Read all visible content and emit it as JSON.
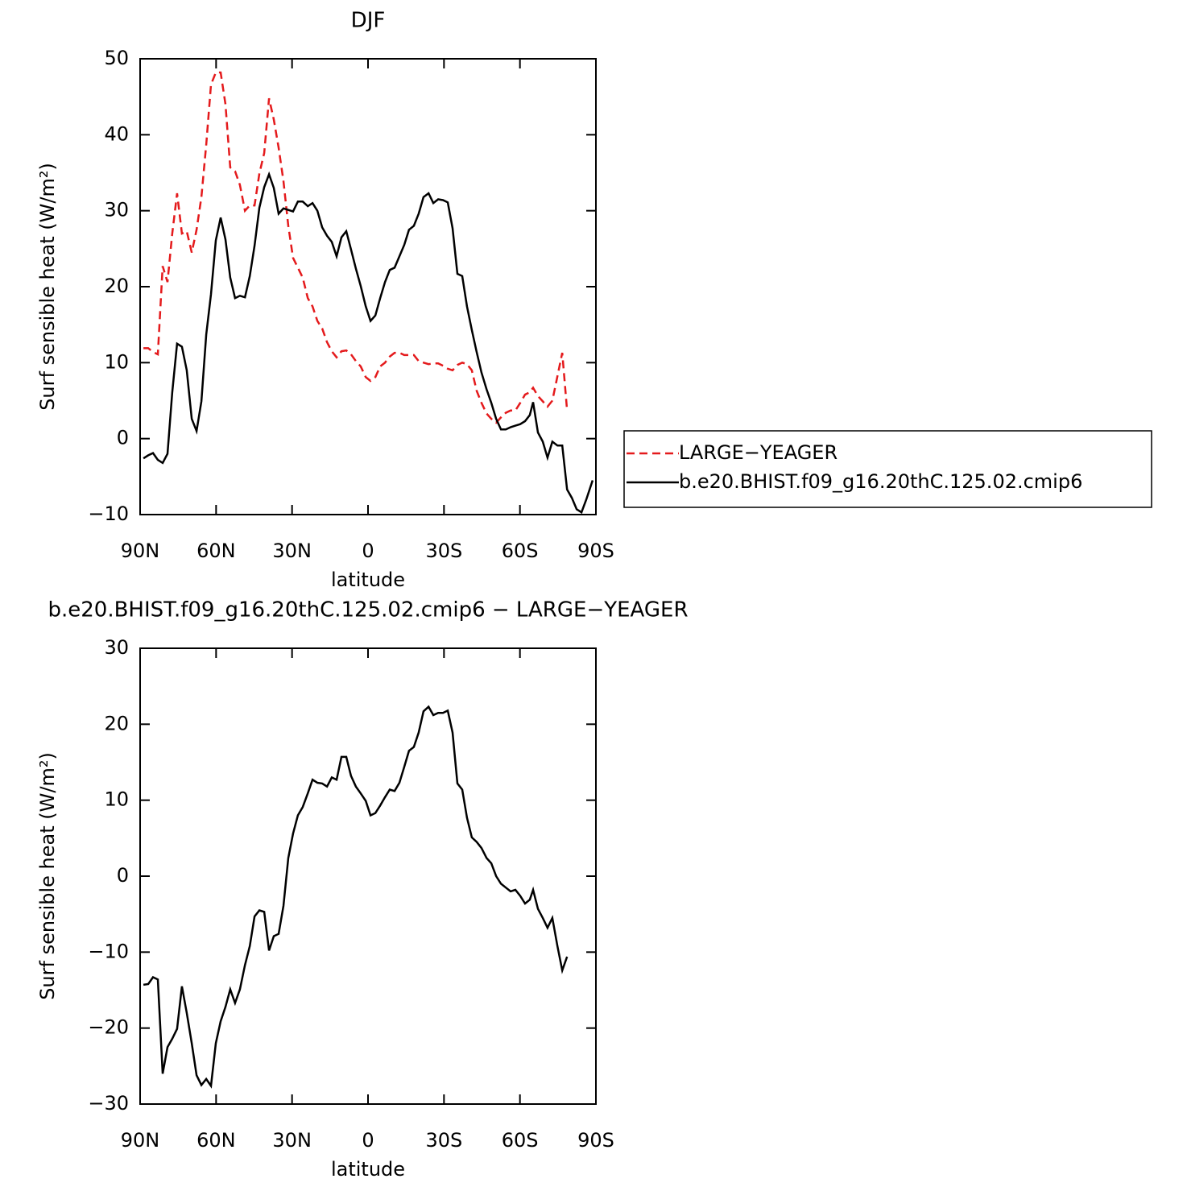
{
  "chart_data": [
    {
      "type": "line",
      "title": "DJF",
      "xlabel": "latitude",
      "ylabel": "Surf sensible heat (W/m²)",
      "xlim": [
        90,
        -90
      ],
      "xticks": [
        {
          "value": 90,
          "label": "90N"
        },
        {
          "value": 60,
          "label": "60N"
        },
        {
          "value": 30,
          "label": "30N"
        },
        0,
        {
          "value": -30,
          "label": "30S"
        },
        {
          "value": -60,
          "label": "60S"
        },
        {
          "value": -90,
          "label": "90S"
        }
      ],
      "ylim": [
        -10,
        50
      ],
      "yticks": [
        {
          "value": -10,
          "label": "−10"
        },
        0,
        10,
        20,
        30,
        40,
        50
      ],
      "legend": "right",
      "x": [
        88.7,
        86.8,
        84.9,
        83,
        81.1,
        79.2,
        77.3,
        75.4,
        73.5,
        71.6,
        69.6,
        67.7,
        65.8,
        63.9,
        62,
        60.1,
        58.2,
        56.3,
        54.4,
        52.5,
        50.6,
        48.6,
        46.7,
        44.8,
        42.9,
        41,
        39.1,
        37.2,
        35.3,
        33.4,
        31.5,
        29.6,
        27.7,
        25.8,
        23.8,
        21.9,
        20,
        18.1,
        16.2,
        14.3,
        12.4,
        10.5,
        8.6,
        6.7,
        4.8,
        2.9,
        0.9,
        -1,
        -2.9,
        -4.8,
        -6.7,
        -8.6,
        -10.5,
        -12.4,
        -14.3,
        -16.2,
        -18.1,
        -20,
        -21.9,
        -23.9,
        -25.8,
        -27.7,
        -29.6,
        -31.5,
        -33.4,
        -35.3,
        -37.2,
        -39.1,
        -41,
        -42.9,
        -44.8,
        -46.8,
        -48.7,
        -50.6,
        -52.5,
        -54.4,
        -56.3,
        -58.2,
        -60.1,
        -62,
        -63.9,
        -65.2,
        -67.1,
        -69,
        -70.9,
        -72.8,
        -74.8,
        -76.7,
        -78.6,
        -80.5,
        -82.4,
        -84.3,
        -86.2,
        -88.7
      ],
      "series": [
        {
          "name": "LARGE−YEAGER",
          "color": "#e41a1c",
          "dash": true,
          "values": [
            11.9,
            11.9,
            11.4,
            11.1,
            22.7,
            20.6,
            27.0,
            32.3,
            27.0,
            27.3,
            24.5,
            27.5,
            31.8,
            38.7,
            46.6,
            48.2,
            48.2,
            44.0,
            35.7,
            35.2,
            33.4,
            30.0,
            30.7,
            30.7,
            34.9,
            37.6,
            44.8,
            42.0,
            38.3,
            33.9,
            28.0,
            23.8,
            22.5,
            21.2,
            18.5,
            17.4,
            15.5,
            14.5,
            12.7,
            11.5,
            10.7,
            11.5,
            11.6,
            11.1,
            10.2,
            9.5,
            8.1,
            7.6,
            8.1,
            9.5,
            10.0,
            10.8,
            11.3,
            11.3,
            11.0,
            11.0,
            11.0,
            10.2,
            10.0,
            9.8,
            9.9,
            9.9,
            9.6,
            9.2,
            9.0,
            9.7,
            10.0,
            9.8,
            9.0,
            6.3,
            4.7,
            3.3,
            2.6,
            2.1,
            2.8,
            3.4,
            3.7,
            3.7,
            4.7,
            5.8,
            6.1,
            6.7,
            5.6,
            4.9,
            4.2,
            5.0,
            8.2,
            11.3,
            3.7,
            null,
            null,
            null,
            null,
            null
          ]
        },
        {
          "name": "b.e20.BHIST.f09_g16.20thC.125.02.cmip6",
          "color": "#000000",
          "dash": false,
          "values": [
            -2.6,
            -2.2,
            -1.9,
            -2.8,
            -3.2,
            -2.0,
            6.1,
            12.5,
            12.1,
            9.0,
            2.6,
            1.0,
            4.9,
            13.7,
            19.0,
            26.1,
            29.1,
            26.2,
            21.2,
            18.5,
            18.8,
            18.6,
            21.4,
            25.4,
            30.4,
            33.1,
            34.8,
            33.0,
            29.6,
            30.3,
            30.1,
            29.9,
            31.2,
            31.2,
            30.6,
            31.0,
            30.0,
            27.8,
            26.7,
            25.9,
            24.0,
            26.5,
            27.3,
            24.9,
            22.4,
            20.1,
            17.4,
            15.5,
            16.2,
            18.5,
            20.6,
            22.2,
            22.5,
            24.0,
            25.5,
            27.5,
            28.0,
            29.6,
            31.8,
            32.3,
            31.0,
            31.5,
            31.4,
            31.1,
            27.7,
            21.7,
            21.4,
            17.4,
            14.3,
            11.4,
            8.7,
            6.5,
            4.7,
            2.6,
            1.2,
            1.2,
            1.5,
            1.7,
            1.9,
            2.3,
            3.1,
            4.8,
            0.8,
            -0.4,
            -2.5,
            -0.4,
            -0.9,
            -0.9,
            -6.7,
            -7.8,
            -9.3,
            -9.7,
            -8.0,
            -5.5
          ]
        }
      ]
    },
    {
      "type": "line",
      "title": "b.e20.BHIST.f09_g16.20thC.125.02.cmip6 − LARGE−YEAGER",
      "xlabel": "latitude",
      "ylabel": "Surf sensible heat (W/m²)",
      "xlim": [
        90,
        -90
      ],
      "xticks": [
        {
          "value": 90,
          "label": "90N"
        },
        {
          "value": 60,
          "label": "60N"
        },
        {
          "value": 30,
          "label": "30N"
        },
        0,
        {
          "value": -30,
          "label": "30S"
        },
        {
          "value": -60,
          "label": "60S"
        },
        {
          "value": -90,
          "label": "90S"
        }
      ],
      "ylim": [
        -30,
        30
      ],
      "yticks": [
        {
          "value": -30,
          "label": "−30"
        },
        {
          "value": -20,
          "label": "−20"
        },
        {
          "value": -10,
          "label": "−10"
        },
        0,
        10,
        20,
        30
      ],
      "x": [
        88.7,
        86.8,
        84.9,
        83,
        81.1,
        79.2,
        77.3,
        75.4,
        73.5,
        71.6,
        69.6,
        67.7,
        65.8,
        63.9,
        62,
        60.1,
        58.2,
        56.3,
        54.4,
        52.5,
        50.6,
        48.6,
        46.7,
        44.8,
        42.9,
        41,
        39.1,
        37.2,
        35.3,
        33.4,
        31.5,
        29.6,
        27.7,
        25.8,
        23.8,
        21.9,
        20,
        18.1,
        16.2,
        14.3,
        12.4,
        10.5,
        8.6,
        6.7,
        4.8,
        2.9,
        0.9,
        -1,
        -2.9,
        -4.8,
        -6.7,
        -8.6,
        -10.5,
        -12.4,
        -14.3,
        -16.2,
        -18.1,
        -20,
        -21.9,
        -23.9,
        -25.8,
        -27.7,
        -29.6,
        -31.5,
        -33.4,
        -35.3,
        -37.2,
        -39.1,
        -41,
        -42.9,
        -44.8,
        -46.8,
        -48.7,
        -50.6,
        -52.5,
        -54.4,
        -56.3,
        -58.2,
        -60.1,
        -62,
        -63.9,
        -65.2,
        -67.1,
        -69,
        -70.9,
        -72.8,
        -74.8,
        -76.7,
        -78.6,
        -80.5,
        -82.4,
        -84.3,
        -86.2,
        -88.7
      ],
      "series": [
        {
          "color": "#000000",
          "dash": false,
          "values": [
            -14.3,
            -14.2,
            -13.3,
            -13.6,
            -26.0,
            -22.5,
            -21.4,
            -20.1,
            -14.5,
            -18.0,
            -22.0,
            -26.2,
            -27.5,
            -26.7,
            -27.6,
            -22.0,
            -19.1,
            -17.2,
            -14.9,
            -16.7,
            -14.9,
            -11.7,
            -9.2,
            -5.3,
            -4.5,
            -4.7,
            -9.8,
            -7.9,
            -7.6,
            -3.9,
            2.4,
            5.6,
            8.0,
            9.1,
            10.9,
            12.7,
            12.3,
            12.2,
            11.8,
            13.0,
            12.7,
            15.7,
            15.7,
            13.2,
            11.8,
            10.9,
            9.9,
            8.0,
            8.3,
            9.3,
            10.4,
            11.4,
            11.2,
            12.3,
            14.4,
            16.5,
            17.0,
            18.9,
            21.7,
            22.3,
            21.2,
            21.5,
            21.5,
            21.8,
            18.9,
            12.2,
            11.4,
            7.7,
            5.1,
            4.5,
            3.7,
            2.4,
            1.7,
            0.0,
            -1.0,
            -1.5,
            -2.0,
            -1.8,
            -2.6,
            -3.6,
            -3.1,
            -1.8,
            -4.3,
            -5.5,
            -6.8,
            -5.5,
            -9.2,
            -12.4,
            -10.6,
            null,
            null,
            null,
            null,
            null
          ]
        }
      ]
    }
  ]
}
